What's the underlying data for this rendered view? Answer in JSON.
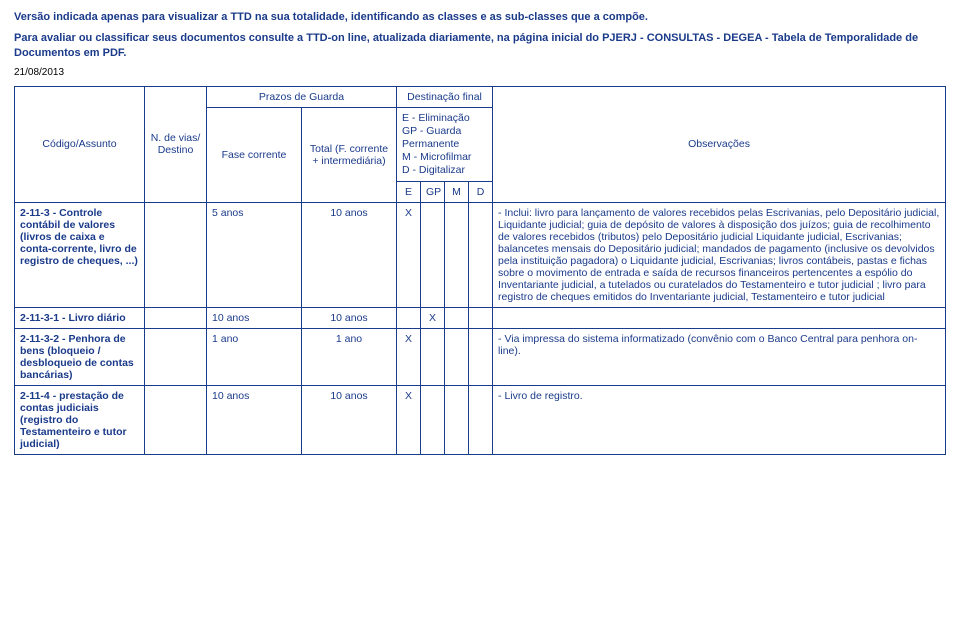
{
  "header": {
    "line1": "Versão indicada apenas para visualizar a TTD na sua totalidade, identificando as classes e as sub-classes que a compõe.",
    "line2": "Para avaliar ou classificar seus documentos consulte a TTD-on line, atualizada diariamente, na página inicial do PJERJ - CONSULTAS - DEGEA - Tabela de Temporalidade de Documentos em PDF.",
    "date": "21/08/2013"
  },
  "columns": {
    "codigo": "Código/Assunto",
    "vias": "N. de vias/ Destino",
    "prazos": "Prazos de Guarda",
    "fase": "Fase corrente",
    "total": "Total (F. corrente + intermediária)",
    "destinacao": "Destinação final",
    "legend_e": "E  - Eliminação",
    "legend_gp": "GP - Guarda Permanente",
    "legend_m": "M  - Microfilmar",
    "legend_d": "D  - Digitalizar",
    "h_e": "E",
    "h_gp": "GP",
    "h_m": "M",
    "h_d": "D",
    "obs": "Observações"
  },
  "rows": [
    {
      "codigo": "2-11-3 - Controle contábil de valores (livros de caixa e conta-corrente, livro de registro de cheques, ...)",
      "vias": "",
      "fase": "5 anos",
      "total": "10  anos",
      "e": "X",
      "gp": "",
      "m": "",
      "d": "",
      "obs": "- Inclui: livro para lançamento de valores recebidos pelas Escrivanias, pelo Depositário judicial, Liquidante judicial; guia de depósito de valores à disposição dos juízos; guia de recolhimento de valores recebidos (tributos) pelo Depositário judicial Liquidante judicial, Escrivanias; balancetes mensais do Depositário judicial; mandados de pagamento (inclusive os devolvidos pela instituição pagadora) o Liquidante judicial, Escrivanias; livros contábeis, pastas e fichas sobre o movimento de entrada e saída de recursos financeiros pertencentes a espólio do Inventariante judicial, a tutelados ou curatelados do Testamenteiro e tutor judicial ; livro para registro de cheques emitidos do Inventariante judicial, Testamenteiro e tutor judicial"
    },
    {
      "codigo": "2-11-3-1 - Livro diário",
      "vias": "",
      "fase": "10 anos",
      "total": "10  anos",
      "e": "",
      "gp": "X",
      "m": "",
      "d": "",
      "obs": ""
    },
    {
      "codigo": "2-11-3-2 - Penhora de bens (bloqueio / desbloqueio de contas bancárias)",
      "vias": "",
      "fase": "1 ano",
      "total": "1  ano",
      "e": "X",
      "gp": "",
      "m": "",
      "d": "",
      "obs": "- Via impressa do sistema informatizado (convênio com o Banco Central para penhora on-line)."
    },
    {
      "codigo": "2-11-4 - prestação de contas judiciais (registro do Testamenteiro e tutor judicial)",
      "vias": "",
      "fase": "10 anos",
      "total": "10  anos",
      "e": "X",
      "gp": "",
      "m": "",
      "d": "",
      "obs": "- Livro de registro."
    }
  ],
  "style": {
    "border_color": "#1a3a8a",
    "text_color": "#1a3a8a",
    "bg": "#ffffff",
    "font_size_body": 10.5,
    "font_size_tiny": 9
  }
}
